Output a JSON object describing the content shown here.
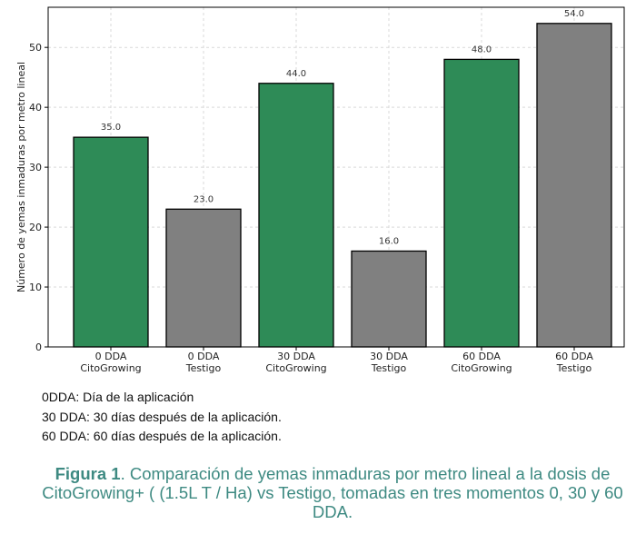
{
  "chart_data": {
    "type": "bar",
    "ylabel": "Número de yemas inmaduras por metro lineal",
    "xlabel": "",
    "categories": [
      [
        "0 DDA",
        "CitoGrowing"
      ],
      [
        "0 DDA",
        "Testigo"
      ],
      [
        "30 DDA",
        "CitoGrowing"
      ],
      [
        "30 DDA",
        "Testigo"
      ],
      [
        "60 DDA",
        "CitoGrowing"
      ],
      [
        "60 DDA",
        "Testigo"
      ]
    ],
    "values": [
      35.0,
      23.0,
      44.0,
      16.0,
      48.0,
      54.0
    ],
    "data_labels": [
      "35.0",
      "23.0",
      "44.0",
      "16.0",
      "48.0",
      "54.0"
    ],
    "bar_colors": [
      "#2e8b57",
      "#808080",
      "#2e8b57",
      "#808080",
      "#2e8b57",
      "#808080"
    ],
    "yticks": [
      0,
      10,
      20,
      30,
      40,
      50
    ],
    "ylim": [
      0,
      56.7
    ],
    "grid": true
  },
  "notes": [
    "0DDA: Día de la aplicación",
    "30 DDA: 30 días después  de la aplicación.",
    "60 DDA: 60 días después de la aplicación."
  ],
  "caption": {
    "label": "Figura 1",
    "text": ".  Comparación de  yemas inmaduras por metro lineal a la dosis de CitoGrowing+ ( (1.5L T / Ha)  vs Testigo, tomadas  en tres momentos  0, 30 y 60 DDA."
  }
}
